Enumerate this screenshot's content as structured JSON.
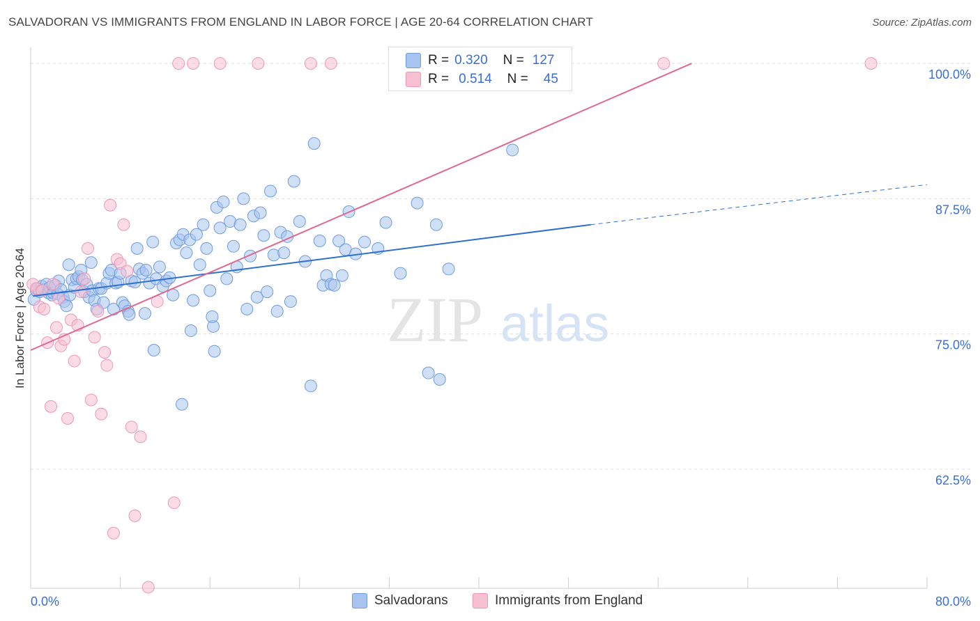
{
  "header": {
    "title": "SALVADORAN VS IMMIGRANTS FROM ENGLAND IN LABOR FORCE | AGE 20-64 CORRELATION CHART",
    "source": "Source: ZipAtlas.com"
  },
  "legend": {
    "row1": {
      "r_label": "R =",
      "r_value": "0.320",
      "n_label": "N =",
      "n_value": "127"
    },
    "row2": {
      "r_label": "R =",
      "r_value": "0.514",
      "n_label": "N =",
      "n_value": "45"
    }
  },
  "bottom_legend": {
    "series1": "Salvadorans",
    "series2": "Immigrants from England"
  },
  "watermark": {
    "zip": "ZIP",
    "atlas": "atlas"
  },
  "colors": {
    "blue_fill": "#a8c4ee",
    "blue_stroke": "#6f9be0",
    "blue_line": "#2f6fd0",
    "pink_fill": "#f7bfd2",
    "pink_stroke": "#ec97b5",
    "pink_line": "#e0688f",
    "tick_label": "#3a6fd0",
    "grid": "#dddddd"
  },
  "chart_data": {
    "type": "scatter",
    "xlabel": "",
    "ylabel": "In Labor Force | Age 20-64",
    "xlim": [
      0,
      80
    ],
    "ylim": [
      51.5,
      102
    ],
    "x_tick_labels": [
      {
        "value": 0,
        "label": "0.0%"
      },
      {
        "value": 80,
        "label": "80.0%"
      }
    ],
    "y_tick_labels": [
      {
        "value": 100,
        "label": "100.0%"
      },
      {
        "value": 87.5,
        "label": "87.5%"
      },
      {
        "value": 75,
        "label": "75.0%"
      },
      {
        "value": 62.5,
        "label": "62.5%"
      }
    ],
    "grid": true,
    "legend_position": "top-center",
    "series": [
      {
        "name": "Salvadorans",
        "color": "#a8c4ee",
        "r": 0.32,
        "n": 127,
        "trend": {
          "x0": 0.2,
          "y0": 78.5,
          "x1": 50,
          "y1": 85.1,
          "dash_to_x": 80,
          "dash_to_y": 88.8
        },
        "points": [
          [
            0.3,
            78.2
          ],
          [
            0.5,
            79.0
          ],
          [
            0.6,
            79.2
          ],
          [
            0.8,
            78.9
          ],
          [
            1.0,
            79.4
          ],
          [
            1.2,
            79.1
          ],
          [
            1.4,
            79.6
          ],
          [
            1.6,
            78.8
          ],
          [
            1.7,
            79.3
          ],
          [
            1.9,
            78.6
          ],
          [
            2.0,
            78.8
          ],
          [
            2.2,
            79.5
          ],
          [
            2.4,
            78.7
          ],
          [
            2.5,
            79.9
          ],
          [
            2.7,
            79.1
          ],
          [
            2.9,
            78.4
          ],
          [
            3.0,
            78.0
          ],
          [
            3.2,
            77.6
          ],
          [
            3.4,
            81.4
          ],
          [
            3.5,
            78.6
          ],
          [
            3.7,
            80.0
          ],
          [
            3.9,
            79.3
          ],
          [
            4.1,
            80.1
          ],
          [
            4.3,
            80.3
          ],
          [
            4.5,
            80.9
          ],
          [
            4.6,
            80.0
          ],
          [
            4.8,
            78.9
          ],
          [
            5.0,
            79.6
          ],
          [
            5.2,
            78.4
          ],
          [
            5.4,
            81.6
          ],
          [
            5.5,
            79.0
          ],
          [
            5.7,
            78.1
          ],
          [
            5.9,
            77.3
          ],
          [
            6.1,
            79.2
          ],
          [
            6.3,
            79.2
          ],
          [
            6.5,
            77.9
          ],
          [
            6.8,
            79.7
          ],
          [
            7.0,
            80.6
          ],
          [
            7.2,
            80.9
          ],
          [
            7.4,
            77.3
          ],
          [
            7.6,
            79.7
          ],
          [
            7.8,
            79.8
          ],
          [
            8.0,
            80.6
          ],
          [
            8.2,
            77.9
          ],
          [
            8.4,
            77.6
          ],
          [
            8.7,
            77.1
          ],
          [
            9.0,
            79.9
          ],
          [
            9.3,
            79.8
          ],
          [
            9.5,
            82.9
          ],
          [
            9.7,
            81.0
          ],
          [
            10.0,
            80.6
          ],
          [
            10.3,
            80.9
          ],
          [
            10.6,
            79.7
          ],
          [
            10.9,
            83.5
          ],
          [
            11.2,
            80.1
          ],
          [
            11.5,
            81.2
          ],
          [
            11.8,
            79.4
          ],
          [
            12.1,
            79.9
          ],
          [
            12.4,
            80.2
          ],
          [
            12.7,
            78.6
          ],
          [
            13.0,
            83.4
          ],
          [
            13.3,
            83.7
          ],
          [
            13.6,
            84.2
          ],
          [
            13.9,
            82.5
          ],
          [
            14.2,
            83.7
          ],
          [
            14.5,
            78.1
          ],
          [
            14.8,
            84.2
          ],
          [
            15.1,
            81.4
          ],
          [
            15.4,
            85.1
          ],
          [
            15.7,
            82.9
          ],
          [
            16.0,
            79.0
          ],
          [
            16.3,
            75.7
          ],
          [
            16.6,
            86.7
          ],
          [
            16.9,
            84.8
          ],
          [
            17.2,
            87.2
          ],
          [
            17.5,
            80.1
          ],
          [
            17.8,
            85.4
          ],
          [
            18.1,
            83.1
          ],
          [
            18.4,
            81.2
          ],
          [
            18.7,
            85.1
          ],
          [
            19.0,
            87.5
          ],
          [
            19.3,
            77.3
          ],
          [
            19.6,
            82.2
          ],
          [
            19.9,
            85.9
          ],
          [
            20.2,
            78.4
          ],
          [
            20.5,
            86.2
          ],
          [
            20.8,
            84.1
          ],
          [
            21.1,
            78.9
          ],
          [
            21.4,
            88.2
          ],
          [
            21.7,
            82.3
          ],
          [
            22.0,
            77.1
          ],
          [
            22.3,
            84.4
          ],
          [
            22.6,
            82.5
          ],
          [
            22.9,
            84.0
          ],
          [
            23.2,
            78.0
          ],
          [
            23.5,
            89.1
          ],
          [
            24.0,
            85.4
          ],
          [
            24.5,
            81.7
          ],
          [
            25.0,
            70.2
          ],
          [
            25.3,
            92.6
          ],
          [
            25.8,
            83.6
          ],
          [
            26.1,
            79.5
          ],
          [
            26.4,
            80.4
          ],
          [
            26.8,
            79.6
          ],
          [
            27.1,
            79.5
          ],
          [
            27.5,
            83.6
          ],
          [
            27.8,
            80.4
          ],
          [
            28.1,
            82.8
          ],
          [
            28.4,
            86.3
          ],
          [
            29.0,
            82.4
          ],
          [
            29.8,
            83.5
          ],
          [
            31.0,
            82.9
          ],
          [
            31.7,
            85.3
          ],
          [
            33.0,
            80.6
          ],
          [
            34.5,
            87.1
          ],
          [
            35.5,
            71.4
          ],
          [
            36.2,
            85.1
          ],
          [
            36.5,
            70.8
          ],
          [
            37.3,
            81.0
          ],
          [
            43.0,
            92.0
          ],
          [
            11.0,
            73.5
          ],
          [
            13.5,
            68.5
          ],
          [
            14.3,
            75.3
          ],
          [
            16.4,
            73.4
          ],
          [
            16.2,
            76.6
          ],
          [
            10.2,
            76.9
          ],
          [
            8.8,
            76.8
          ]
        ]
      },
      {
        "name": "Immigrants from England",
        "color": "#f7bfd2",
        "r": 0.514,
        "n": 45,
        "trend": {
          "x0": 0,
          "y0": 73.5,
          "x1": 59,
          "y1": 100.0
        },
        "points": [
          [
            0.2,
            79.6
          ],
          [
            0.5,
            79.2
          ],
          [
            0.8,
            77.5
          ],
          [
            1.0,
            79.0
          ],
          [
            1.2,
            77.3
          ],
          [
            1.5,
            74.2
          ],
          [
            1.8,
            68.3
          ],
          [
            2.0,
            79.6
          ],
          [
            2.3,
            75.6
          ],
          [
            2.5,
            78.3
          ],
          [
            2.7,
            73.9
          ],
          [
            3.0,
            74.5
          ],
          [
            3.3,
            67.2
          ],
          [
            3.6,
            76.3
          ],
          [
            3.9,
            72.5
          ],
          [
            4.2,
            75.8
          ],
          [
            4.5,
            78.9
          ],
          [
            4.8,
            80.1
          ],
          [
            5.1,
            82.9
          ],
          [
            5.4,
            68.9
          ],
          [
            5.7,
            74.7
          ],
          [
            6.0,
            77.1
          ],
          [
            6.3,
            67.6
          ],
          [
            6.6,
            73.3
          ],
          [
            6.8,
            72.1
          ],
          [
            7.1,
            86.9
          ],
          [
            7.4,
            56.6
          ],
          [
            7.7,
            81.9
          ],
          [
            8.0,
            81.5
          ],
          [
            8.3,
            85.1
          ],
          [
            8.6,
            80.8
          ],
          [
            9.0,
            66.4
          ],
          [
            9.3,
            58.2
          ],
          [
            9.8,
            65.5
          ],
          [
            10.5,
            51.6
          ],
          [
            11.3,
            78.0
          ],
          [
            12.8,
            59.4
          ],
          [
            13.2,
            100.0
          ],
          [
            14.5,
            100.0
          ],
          [
            16.9,
            100.0
          ],
          [
            20.3,
            100.0
          ],
          [
            25.0,
            100.0
          ],
          [
            26.8,
            100.0
          ],
          [
            56.5,
            100.0
          ],
          [
            75.0,
            100.0
          ]
        ]
      }
    ]
  }
}
